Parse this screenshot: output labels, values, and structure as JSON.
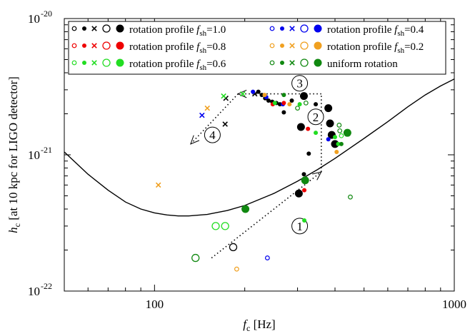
{
  "chart_data": {
    "type": "scatter",
    "x_scale": "log",
    "y_scale": "log",
    "xlim": [
      50,
      1000
    ],
    "ylim": [
      1e-22,
      1e-20
    ],
    "x_ticks": [
      {
        "value": 100,
        "label": "100"
      },
      {
        "value": 1000,
        "label": "1000"
      }
    ],
    "y_ticks": [
      {
        "value": 1e-22,
        "base": "10",
        "exp": "-22"
      },
      {
        "value": 1e-21,
        "base": "10",
        "exp": "-21"
      },
      {
        "value": 1e-20,
        "base": "10",
        "exp": "-20"
      }
    ],
    "xlabel": {
      "main": "f",
      "sub": "c",
      "rest": " [Hz]"
    },
    "ylabel": {
      "main": "h",
      "sub": "c",
      "rest": " [at 10 kpc for LIGO detector]"
    },
    "legend_position": "top",
    "legend": [
      {
        "color": "#000000",
        "prefix": "rotation profile ",
        "f": "f",
        "sub": "sh",
        "suffix": "=1.0"
      },
      {
        "color": "#0000ee",
        "prefix": "rotation profile ",
        "f": "f",
        "sub": "sh",
        "suffix": "=0.4"
      },
      {
        "color": "#ee0000",
        "prefix": "rotation profile ",
        "f": "f",
        "sub": "sh",
        "suffix": "=0.8"
      },
      {
        "color": "#f0a020",
        "prefix": "rotation profile ",
        "f": "f",
        "sub": "sh",
        "suffix": "=0.2"
      },
      {
        "color": "#22dd22",
        "prefix": "rotation profile ",
        "f": "f",
        "sub": "sh",
        "suffix": "=0.6"
      },
      {
        "color": "#108810",
        "prefix": "uniform rotation",
        "f": "",
        "sub": "",
        "suffix": ""
      }
    ],
    "sensitivity_curve": [
      [
        50,
        1.05e-21
      ],
      [
        60,
        7.2e-22
      ],
      [
        70,
        5.5e-22
      ],
      [
        80,
        4.5e-22
      ],
      [
        90,
        4e-22
      ],
      [
        100,
        3.75e-22
      ],
      [
        110,
        3.62e-22
      ],
      [
        120,
        3.56e-22
      ],
      [
        130,
        3.56e-22
      ],
      [
        150,
        3.65e-22
      ],
      [
        175,
        3.9e-22
      ],
      [
        200,
        4.25e-22
      ],
      [
        250,
        5.2e-22
      ],
      [
        300,
        6.4e-22
      ],
      [
        350,
        7.8e-22
      ],
      [
        400,
        9.4e-22
      ],
      [
        500,
        1.32e-21
      ],
      [
        600,
        1.75e-21
      ],
      [
        700,
        2.25e-21
      ],
      [
        800,
        2.75e-21
      ],
      [
        900,
        3.2e-21
      ],
      [
        1000,
        3.6e-21
      ]
    ],
    "path_segments": [
      {
        "label": "1",
        "arrow": true,
        "label_pos": [
          305,
          3e-22
        ],
        "points": [
          [
            155,
            1.75e-22
          ],
          [
            360,
            7.5e-22
          ]
        ]
      },
      {
        "label": "2",
        "arrow": false,
        "label_pos": [
          345,
          1.9e-21
        ],
        "points": [
          [
            360,
            7.5e-22
          ],
          [
            360,
            2.8e-21
          ]
        ]
      },
      {
        "label": "3",
        "arrow": true,
        "label_pos": [
          305,
          3.35e-21
        ],
        "points": [
          [
            360,
            2.8e-21
          ],
          [
            248,
            2.8e-21
          ],
          [
            190,
            2.8e-21
          ]
        ]
      },
      {
        "label": "4",
        "arrow": true,
        "label_pos": [
          156,
          1.4e-21
        ],
        "points": [
          [
            190,
            2.8e-21
          ],
          [
            132,
            1.2e-21
          ]
        ]
      }
    ],
    "series": [
      {
        "name": "rotation profile fsh=1.0",
        "color": "#000000",
        "points": [
          {
            "x": 183,
            "y": 2.1e-22,
            "m": "oL"
          },
          {
            "x": 172,
            "y": 1.68e-21,
            "m": "x"
          },
          {
            "x": 173,
            "y": 2.6e-21,
            "m": "x"
          },
          {
            "x": 216,
            "y": 2.8e-21,
            "m": "x"
          },
          {
            "x": 222,
            "y": 2.9e-21,
            "m": "fs"
          },
          {
            "x": 228,
            "y": 2.75e-21,
            "m": "fs"
          },
          {
            "x": 234,
            "y": 2.6e-21,
            "m": "fs"
          },
          {
            "x": 240,
            "y": 2.5e-21,
            "m": "fs"
          },
          {
            "x": 247,
            "y": 2.45e-21,
            "m": "fs"
          },
          {
            "x": 255,
            "y": 2.4e-21,
            "m": "fs"
          },
          {
            "x": 262,
            "y": 2.35e-21,
            "m": "fs"
          },
          {
            "x": 270,
            "y": 2.05e-21,
            "m": "fs"
          },
          {
            "x": 287,
            "y": 2.5e-21,
            "m": "fs"
          },
          {
            "x": 303,
            "y": 5.2e-22,
            "m": "fL"
          },
          {
            "x": 308,
            "y": 1.6e-21,
            "m": "fL"
          },
          {
            "x": 315,
            "y": 7.2e-22,
            "m": "fs"
          },
          {
            "x": 315,
            "y": 2.7e-21,
            "m": "fL"
          },
          {
            "x": 327,
            "y": 1.02e-21,
            "m": "fs"
          },
          {
            "x": 345,
            "y": 2.35e-21,
            "m": "fs"
          },
          {
            "x": 380,
            "y": 2.2e-21,
            "m": "fL"
          },
          {
            "x": 385,
            "y": 1.7e-21,
            "m": "fL"
          },
          {
            "x": 390,
            "y": 1.4e-21,
            "m": "fL"
          },
          {
            "x": 400,
            "y": 1.2e-21,
            "m": "fL"
          }
        ]
      },
      {
        "name": "rotation profile fsh=0.4",
        "color": "#0000ee",
        "points": [
          {
            "x": 144,
            "y": 1.95e-21,
            "m": "x"
          },
          {
            "x": 236,
            "y": 2.65e-21,
            "m": "fs"
          },
          {
            "x": 268,
            "y": 2.35e-21,
            "m": "fs"
          },
          {
            "x": 238,
            "y": 1.75e-22,
            "m": "oS"
          },
          {
            "x": 380,
            "y": 1.3e-21,
            "m": "fs"
          },
          {
            "x": 213,
            "y": 2.9e-21,
            "m": "fs"
          }
        ]
      },
      {
        "name": "rotation profile fsh=0.8",
        "color": "#ee0000",
        "points": [
          {
            "x": 248,
            "y": 2.35e-21,
            "m": "fs"
          },
          {
            "x": 325,
            "y": 1.55e-21,
            "m": "fs"
          },
          {
            "x": 316,
            "y": 5.5e-22,
            "m": "fs"
          },
          {
            "x": 270,
            "y": 2.4e-21,
            "m": "fs"
          }
        ]
      },
      {
        "name": "rotation profile fsh=0.2",
        "color": "#f0a020",
        "points": [
          {
            "x": 103,
            "y": 6e-22,
            "m": "x"
          },
          {
            "x": 150,
            "y": 2.2e-21,
            "m": "x"
          },
          {
            "x": 188,
            "y": 1.45e-22,
            "m": "oS"
          },
          {
            "x": 282,
            "y": 2.35e-21,
            "m": "fs"
          },
          {
            "x": 405,
            "y": 1.05e-21,
            "m": "fs"
          },
          {
            "x": 233,
            "y": 2.75e-21,
            "m": "fs"
          }
        ]
      },
      {
        "name": "rotation profile fsh=0.6",
        "color": "#22dd22",
        "points": [
          {
            "x": 170,
            "y": 2.7e-21,
            "m": "x"
          },
          {
            "x": 197,
            "y": 2.8e-21,
            "m": "x"
          },
          {
            "x": 252,
            "y": 2.4e-21,
            "m": "fs"
          },
          {
            "x": 305,
            "y": 2.35e-21,
            "m": "fs"
          },
          {
            "x": 345,
            "y": 1.45e-21,
            "m": "fs"
          },
          {
            "x": 400,
            "y": 1.35e-21,
            "m": "fs"
          },
          {
            "x": 410,
            "y": 1.2e-21,
            "m": "fs"
          },
          {
            "x": 160,
            "y": 3e-22,
            "m": "oL"
          },
          {
            "x": 172,
            "y": 3e-22,
            "m": "oL"
          },
          {
            "x": 316,
            "y": 3.3e-22,
            "m": "fs"
          },
          {
            "x": 420,
            "y": 1.38e-21,
            "m": "oS"
          }
        ]
      },
      {
        "name": "uniform rotation",
        "color": "#108810",
        "points": [
          {
            "x": 137,
            "y": 1.75e-22,
            "m": "oL"
          },
          {
            "x": 201,
            "y": 4e-22,
            "m": "fL"
          },
          {
            "x": 318,
            "y": 6.5e-22,
            "m": "fL"
          },
          {
            "x": 300,
            "y": 2.2e-21,
            "m": "oS"
          },
          {
            "x": 320,
            "y": 2.4e-21,
            "m": "oS"
          },
          {
            "x": 415,
            "y": 1.5e-21,
            "m": "oS"
          },
          {
            "x": 440,
            "y": 1.45e-21,
            "m": "fL"
          },
          {
            "x": 413,
            "y": 1.65e-21,
            "m": "oS"
          },
          {
            "x": 420,
            "y": 1.2e-21,
            "m": "fs"
          },
          {
            "x": 450,
            "y": 4.9e-22,
            "m": "oS"
          },
          {
            "x": 270,
            "y": 2.75e-21,
            "m": "fs"
          }
        ]
      }
    ]
  }
}
